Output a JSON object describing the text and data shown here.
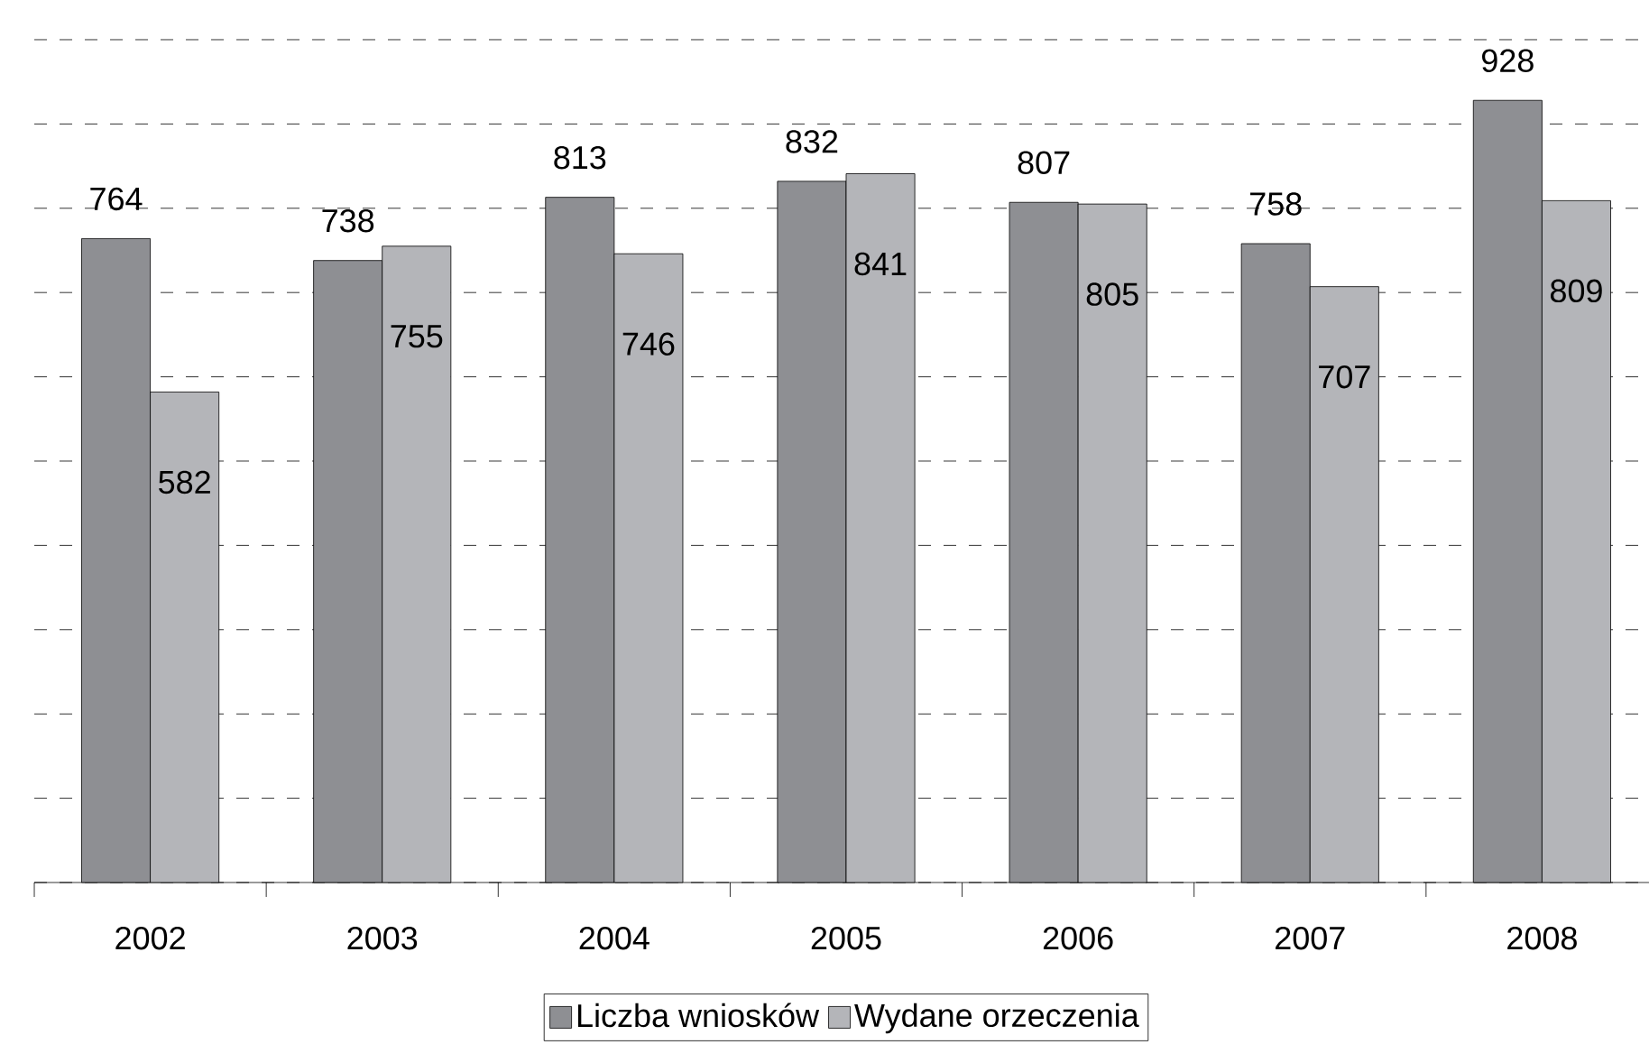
{
  "chart_data": {
    "type": "bar",
    "categories": [
      "2002",
      "2003",
      "2004",
      "2005",
      "2006",
      "2007",
      "2008"
    ],
    "series": [
      {
        "name": "Liczba wniosków",
        "color": "#8e8f93",
        "values": [
          764,
          738,
          813,
          832,
          807,
          758,
          928
        ]
      },
      {
        "name": "Wydane orzeczenia",
        "color": "#b4b5b9",
        "values": [
          582,
          755,
          746,
          841,
          805,
          707,
          809
        ]
      }
    ],
    "ylim": [
      0,
      1000
    ],
    "yticks": [
      {
        "value": 0,
        "label": null
      },
      {
        "value": 100,
        "label": null
      },
      {
        "value": 200,
        "label": null
      },
      {
        "value": 300,
        "label": null
      },
      {
        "value": 400,
        "label": null
      },
      {
        "value": 500,
        "label": null
      },
      {
        "value": 600,
        "label": null
      },
      {
        "value": 700,
        "label": null
      },
      {
        "value": 800,
        "label": null
      },
      {
        "value": 900,
        "label": null
      },
      {
        "value": 1000,
        "label": null
      }
    ],
    "tick_labels": "x",
    "grid": "y",
    "legend": "bottom",
    "data_labels": true
  }
}
